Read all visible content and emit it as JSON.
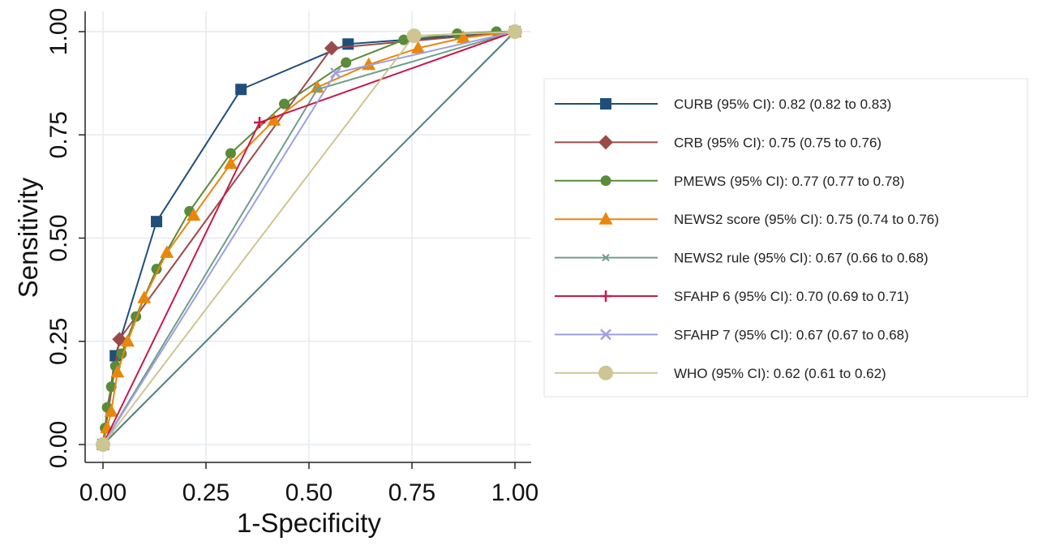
{
  "chart_data": {
    "type": "line",
    "xlabel": "1-Specificity",
    "ylabel": "Sensitivity",
    "xlim": [
      0,
      1
    ],
    "ylim": [
      0,
      1
    ],
    "xticks": [
      "0.00",
      "0.25",
      "0.50",
      "0.75",
      "1.00"
    ],
    "yticks": [
      "0.00",
      "0.25",
      "0.50",
      "0.75",
      "1.00"
    ],
    "grid": true,
    "legend_position": "right",
    "reference_line": {
      "x": [
        0,
        1
      ],
      "y": [
        0,
        1
      ],
      "color": "#4a7f7f"
    },
    "series": [
      {
        "name": "CURB (95% CI): 0.82 (0.82 to 0.83)",
        "color": "#1f4e79",
        "marker": "square",
        "x": [
          0,
          0.03,
          0.13,
          0.335,
          0.595,
          1.0
        ],
        "y": [
          0,
          0.215,
          0.54,
          0.86,
          0.97,
          1.0
        ]
      },
      {
        "name": "CRB (95% CI): 0.75 (0.75 to 0.76)",
        "color": "#9b4a4a",
        "marker": "diamond",
        "x": [
          0,
          0.04,
          0.555,
          1.0
        ],
        "y": [
          0,
          0.255,
          0.96,
          1.0
        ]
      },
      {
        "name": "PMEWS (95% CI): 0.77  (0.77 to 0.78)",
        "color": "#5a8a3a",
        "marker": "circle",
        "x": [
          0,
          0.005,
          0.01,
          0.02,
          0.03,
          0.045,
          0.08,
          0.13,
          0.21,
          0.31,
          0.44,
          0.59,
          0.73,
          0.86,
          0.955,
          1.0
        ],
        "y": [
          0,
          0.04,
          0.09,
          0.14,
          0.19,
          0.22,
          0.31,
          0.425,
          0.565,
          0.705,
          0.825,
          0.925,
          0.98,
          0.995,
          1.0,
          1.0
        ],
        "marker_at": "all"
      },
      {
        "name": "NEWS2 score (95% CI): 0.75  (0.74 to 0.76)",
        "color": "#e8870c",
        "marker": "triangle",
        "x": [
          0,
          0.01,
          0.02,
          0.035,
          0.06,
          0.1,
          0.155,
          0.22,
          0.31,
          0.415,
          0.52,
          0.645,
          0.765,
          0.875,
          1.0
        ],
        "y": [
          0,
          0.04,
          0.08,
          0.175,
          0.25,
          0.355,
          0.465,
          0.555,
          0.68,
          0.785,
          0.865,
          0.92,
          0.96,
          0.985,
          1.0
        ]
      },
      {
        "name": "NEWS2 rule (95% CI): 0.67  (0.66 to 0.68)",
        "color": "#6f9e8c",
        "marker": "x-small",
        "x": [
          0,
          0.52,
          1.0
        ],
        "y": [
          0,
          0.86,
          1.0
        ]
      },
      {
        "name": "SFAHP 6 (95% CI): 0.70  (0.69 to 0.71)",
        "color": "#c8194a",
        "marker": "plus",
        "x": [
          0,
          0.38,
          1.0
        ],
        "y": [
          0,
          0.78,
          1.0
        ]
      },
      {
        "name": "SFAHP 7 (95% CI): 0.67  (0.67 to 0.68)",
        "color": "#9e9fe0",
        "marker": "x",
        "x": [
          0,
          0.565,
          1.0
        ],
        "y": [
          0,
          0.9,
          1.0
        ]
      },
      {
        "name": "WHO (95% CI): 0.62  (0.61 to 0.62)",
        "color": "#cdc592",
        "marker": "big-circle",
        "x": [
          0,
          0.755,
          1.0
        ],
        "y": [
          0,
          0.99,
          1.0
        ]
      }
    ]
  }
}
